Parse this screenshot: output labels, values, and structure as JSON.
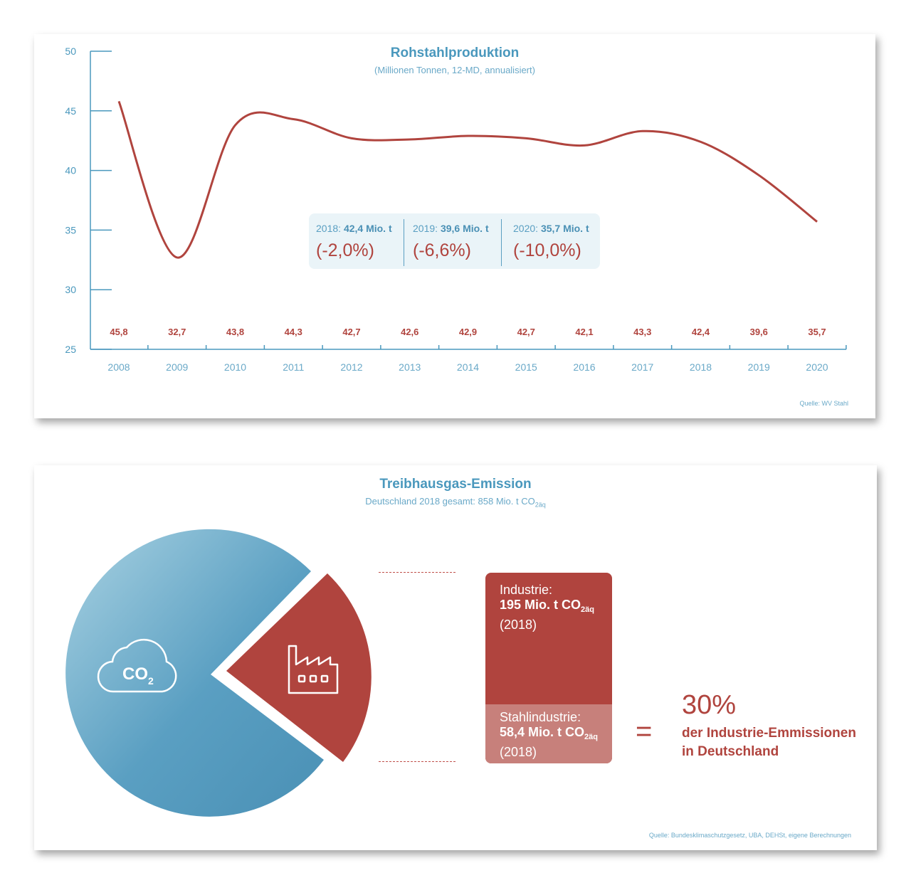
{
  "chart1": {
    "title": "Rohstahlproduktion",
    "subtitle": "(Millionen Tonnen, 12-MD, annualisiert)",
    "source": "Quelle: WV Stahl",
    "callout": [
      {
        "year_label": "2018:",
        "value_label": "42,4 Mio. t",
        "change": "(-2,0%)"
      },
      {
        "year_label": "2019:",
        "value_label": "39,6 Mio. t",
        "change": "(-6,6%)"
      },
      {
        "year_label": "2020:",
        "value_label": "35,7 Mio. t",
        "change": "(-10,0%)"
      }
    ]
  },
  "chart_data": [
    {
      "type": "line",
      "title": "Rohstahlproduktion",
      "subtitle": "(Millionen Tonnen, 12-MD, annualisiert)",
      "x": [
        "2008",
        "2009",
        "2010",
        "2011",
        "2012",
        "2013",
        "2014",
        "2015",
        "2016",
        "2017",
        "2018",
        "2019",
        "2020"
      ],
      "series": [
        {
          "values": [
            45.8,
            32.7,
            43.8,
            44.3,
            42.7,
            42.6,
            42.9,
            42.7,
            42.1,
            43.3,
            42.4,
            39.6,
            35.7
          ]
        }
      ],
      "data_labels": [
        "45,8",
        "32,7",
        "43,8",
        "44,3",
        "42,7",
        "42,6",
        "42,9",
        "42,7",
        "42,1",
        "43,3",
        "42,4",
        "39,6",
        "35,7"
      ],
      "y_ticks": [
        "50",
        "45",
        "40",
        "35",
        "30",
        "25"
      ],
      "ylim": [
        25,
        50
      ],
      "line_color": "#b0443e",
      "axis_color": "#4a98bd",
      "grid": false
    },
    {
      "type": "pie",
      "title": "Treibhausgas-Emission",
      "subtitle": "Deutschland 2018 gesamt: 858 Mio. t CO2äq",
      "slices": [
        {
          "label": "CO2",
          "value": 663
        },
        {
          "label": "Industrie",
          "value": 195
        }
      ],
      "colors": [
        "#5a9fc2",
        "#b0443e"
      ]
    }
  ],
  "chart2": {
    "title": "Treibhausgas-Emission",
    "subtitle_main": "Deutschland 2018 gesamt: 858 Mio. t CO",
    "subtitle_sub": "2äq",
    "co2_main": "CO",
    "co2_sub": "2",
    "industry": {
      "label": "Industrie:",
      "value_main": "195 Mio. t CO",
      "value_sub": "2äq",
      "year": "(2018)"
    },
    "steel": {
      "label": "Stahlindustrie:",
      "value_main": "58,4 Mio. t CO",
      "value_sub": "2äq",
      "year": "(2018)"
    },
    "equals": "=",
    "percent": "30%",
    "percent_text_line1": "der Industrie-Emmissionen",
    "percent_text_line2": "in Deutschland",
    "source": "Quelle: Bundesklimaschutzgesetz, UBA, DEHSt, eigene Berechnungen",
    "icons": [
      "cloud-icon",
      "factory-icon"
    ]
  }
}
